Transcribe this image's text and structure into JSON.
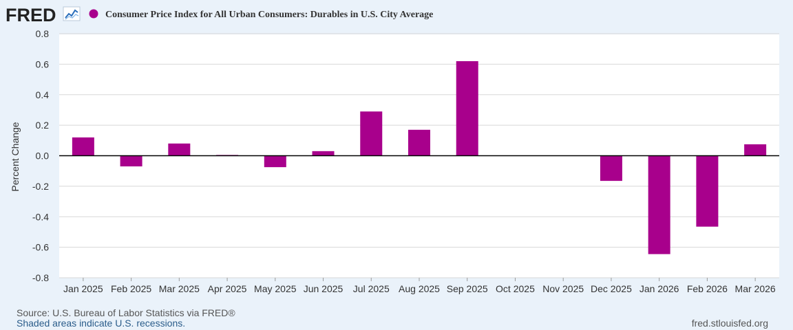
{
  "logo": {
    "text": "FRED"
  },
  "colors": {
    "series": "#a8008c",
    "background": "#eaf2fa",
    "plot_background": "#ffffff",
    "grid": "#d8d8d8",
    "text": "#333333",
    "link": "#2a5c8a"
  },
  "chart_data": {
    "type": "bar",
    "title": "Consumer Price Index for All Urban Consumers: Durables in U.S. City Average",
    "xlabel": "",
    "ylabel": "Percent Change",
    "ylim": [
      -0.8,
      0.8
    ],
    "yticks": [
      0.8,
      0.6,
      0.4,
      0.2,
      0.0,
      -0.2,
      -0.4,
      -0.6,
      -0.8
    ],
    "ytick_labels": [
      "0.8",
      "0.6",
      "0.4",
      "0.2",
      "0.0",
      "-0.2",
      "-0.4",
      "-0.6",
      "-0.8"
    ],
    "grid": true,
    "legend": "top-left",
    "categories": [
      "Jan 2025",
      "Feb 2025",
      "Mar 2025",
      "Apr 2025",
      "May 2025",
      "Jun 2025",
      "Jul 2025",
      "Aug 2025",
      "Sep 2025",
      "Oct 2025",
      "Nov 2025",
      "Dec 2025",
      "Jan 2026",
      "Feb 2026",
      "Mar 2026"
    ],
    "values": [
      0.12,
      -0.07,
      0.08,
      0.005,
      -0.075,
      0.03,
      0.29,
      0.17,
      0.62,
      null,
      null,
      -0.165,
      -0.645,
      -0.465,
      0.075
    ]
  },
  "footer": {
    "source": "Source: U.S. Bureau of Labor Statistics via FRED®",
    "recession_note": "Shaded areas indicate U.S. recessions.",
    "site": "fred.stlouisfed.org"
  }
}
